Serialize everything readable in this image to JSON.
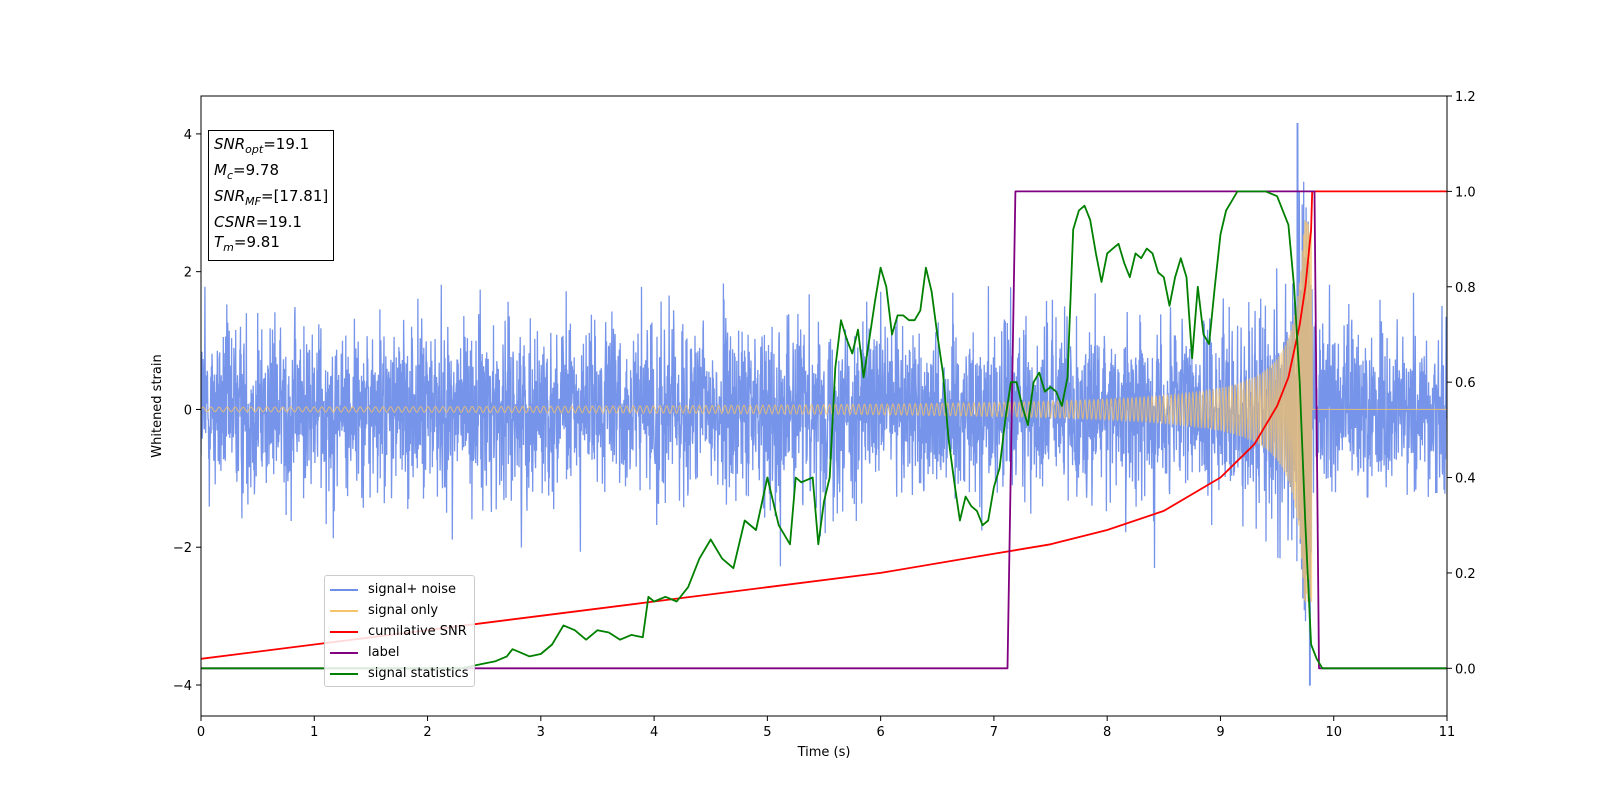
{
  "chart_data": {
    "type": "line",
    "xlabel": "Time (s)",
    "ylabel": "Whitened strain",
    "xlim": [
      0,
      11
    ],
    "ylim": [
      -4.45,
      4.55
    ],
    "y2lim": [
      -0.1,
      1.2
    ],
    "x_ticks": [
      "0",
      "1",
      "2",
      "3",
      "4",
      "5",
      "6",
      "7",
      "8",
      "9",
      "10",
      "11"
    ],
    "x_tick_values": [
      0,
      1,
      2,
      3,
      4,
      5,
      6,
      7,
      8,
      9,
      10,
      11
    ],
    "y_ticks": [
      "−4",
      "−2",
      "0",
      "2",
      "4"
    ],
    "y_tick_values": [
      -4,
      -2,
      0,
      2,
      4
    ],
    "y2_ticks": [
      "0.0",
      "0.2",
      "0.4",
      "0.6",
      "0.8",
      "1.0",
      "1.2"
    ],
    "y2_tick_values": [
      0.0,
      0.2,
      0.4,
      0.6,
      0.8,
      1.0,
      1.2
    ],
    "grid": false,
    "legend_position": "lower-left",
    "info_box": {
      "snr_opt_label": "SNR",
      "snr_opt_sub": "opt",
      "snr_opt_value": "=19.1",
      "mc_label": "M",
      "mc_sub": "c",
      "mc_value": "=9.78",
      "snr_mf_label": "SNR",
      "snr_mf_sub": "MF",
      "snr_mf_value": "=[17.81]",
      "csnr_label": "CSNR",
      "csnr_value": "=19.1",
      "tm_label": "T",
      "tm_sub": "m",
      "tm_value": "=9.81"
    },
    "series": [
      {
        "name": "signal+ noise",
        "axis": "left",
        "color": "#6f8ee8",
        "description_values": {
          "noise_amplitude_approx": 1.1,
          "peak_max": 4.15,
          "peak_min": -4.0
        }
      },
      {
        "name": "signal only",
        "axis": "left",
        "color": "#f5c36a",
        "chirp": {
          "t_start": 0,
          "t_merger": 9.81,
          "amp_start": 0.03,
          "amp_peak": 2.8
        }
      },
      {
        "name": "cumilative SNR",
        "axis": "right",
        "color": "#ff0000",
        "x": [
          0,
          1,
          2,
          3,
          4,
          5,
          6,
          7,
          7.5,
          8,
          8.5,
          9,
          9.3,
          9.5,
          9.6,
          9.7,
          9.75,
          9.8,
          9.81,
          11
        ],
        "values": [
          0.02,
          0.05,
          0.08,
          0.11,
          0.14,
          0.17,
          0.2,
          0.24,
          0.26,
          0.29,
          0.33,
          0.4,
          0.47,
          0.55,
          0.61,
          0.72,
          0.8,
          0.92,
          1.0,
          1.0
        ]
      },
      {
        "name": "label",
        "axis": "right",
        "color": "#800080",
        "x": [
          0,
          7.12,
          7.19,
          9.83,
          9.87,
          11
        ],
        "values": [
          0.0,
          0.0,
          1.0,
          1.0,
          0.0,
          0.0
        ]
      },
      {
        "name": "signal statistics",
        "axis": "right",
        "color": "#008000",
        "x": [
          0,
          2.0,
          2.3,
          2.5,
          2.6,
          2.7,
          2.75,
          2.8,
          2.9,
          3.0,
          3.1,
          3.15,
          3.2,
          3.3,
          3.4,
          3.5,
          3.6,
          3.7,
          3.8,
          3.9,
          3.95,
          4.0,
          4.1,
          4.2,
          4.3,
          4.4,
          4.5,
          4.6,
          4.7,
          4.8,
          4.9,
          5.0,
          5.1,
          5.2,
          5.25,
          5.3,
          5.4,
          5.45,
          5.5,
          5.55,
          5.6,
          5.65,
          5.7,
          5.75,
          5.8,
          5.85,
          5.9,
          5.95,
          6.0,
          6.05,
          6.1,
          6.15,
          6.2,
          6.25,
          6.3,
          6.35,
          6.4,
          6.45,
          6.5,
          6.55,
          6.6,
          6.65,
          6.7,
          6.75,
          6.8,
          6.85,
          6.9,
          6.95,
          7.0,
          7.05,
          7.1,
          7.15,
          7.2,
          7.25,
          7.3,
          7.35,
          7.4,
          7.45,
          7.5,
          7.55,
          7.6,
          7.65,
          7.7,
          7.75,
          7.8,
          7.85,
          7.9,
          7.95,
          8.0,
          8.05,
          8.1,
          8.15,
          8.2,
          8.25,
          8.3,
          8.35,
          8.4,
          8.45,
          8.5,
          8.55,
          8.6,
          8.65,
          8.7,
          8.75,
          8.8,
          8.85,
          8.9,
          8.95,
          9.0,
          9.05,
          9.1,
          9.15,
          9.2,
          9.3,
          9.4,
          9.5,
          9.6,
          9.65,
          9.7,
          9.75,
          9.8,
          9.85,
          9.9,
          10.0,
          11
        ],
        "values": [
          0.0,
          0.0,
          0.0,
          0.01,
          0.015,
          0.025,
          0.04,
          0.035,
          0.025,
          0.03,
          0.05,
          0.07,
          0.09,
          0.08,
          0.06,
          0.08,
          0.075,
          0.06,
          0.07,
          0.065,
          0.15,
          0.14,
          0.15,
          0.14,
          0.17,
          0.23,
          0.27,
          0.23,
          0.21,
          0.31,
          0.29,
          0.4,
          0.3,
          0.26,
          0.4,
          0.39,
          0.4,
          0.26,
          0.35,
          0.4,
          0.63,
          0.73,
          0.69,
          0.66,
          0.71,
          0.61,
          0.69,
          0.77,
          0.84,
          0.8,
          0.7,
          0.74,
          0.74,
          0.73,
          0.73,
          0.75,
          0.84,
          0.79,
          0.7,
          0.62,
          0.48,
          0.39,
          0.31,
          0.36,
          0.34,
          0.33,
          0.3,
          0.31,
          0.38,
          0.42,
          0.52,
          0.6,
          0.6,
          0.55,
          0.51,
          0.6,
          0.62,
          0.58,
          0.59,
          0.58,
          0.55,
          0.61,
          0.92,
          0.96,
          0.97,
          0.94,
          0.87,
          0.81,
          0.87,
          0.88,
          0.89,
          0.85,
          0.82,
          0.87,
          0.86,
          0.88,
          0.87,
          0.83,
          0.82,
          0.76,
          0.82,
          0.86,
          0.82,
          0.65,
          0.8,
          0.7,
          0.68,
          0.8,
          0.91,
          0.96,
          0.98,
          1.0,
          1.0,
          1.0,
          1.0,
          0.99,
          0.93,
          0.8,
          0.6,
          0.3,
          0.05,
          0.02,
          0.0,
          0.0,
          0.0
        ]
      }
    ]
  }
}
